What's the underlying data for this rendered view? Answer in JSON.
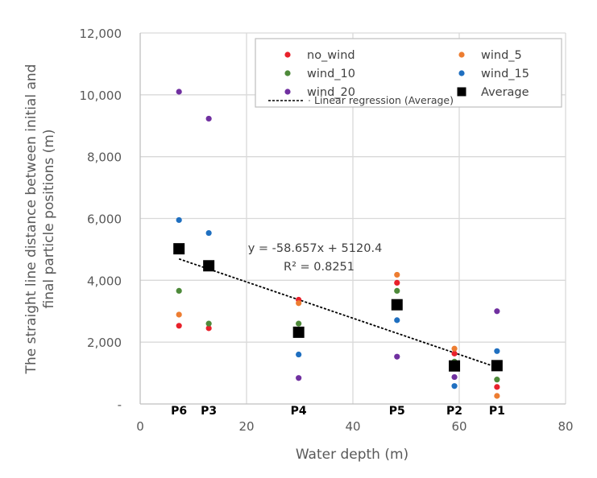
{
  "chart_data": {
    "type": "scatter",
    "title": "",
    "xlabel": "Water depth (m)",
    "ylabel_lines": [
      "The straight line distance between initial and",
      "final particle positions (m)"
    ],
    "xlim": [
      0,
      80
    ],
    "ylim": [
      0,
      12000
    ],
    "x_ticks": [
      0,
      20,
      40,
      60,
      80
    ],
    "x_tick_labels": [
      "0",
      "20",
      "40",
      "60",
      "80"
    ],
    "y_ticks": [
      0,
      2000,
      4000,
      6000,
      8000,
      10000,
      12000
    ],
    "y_tick_labels": [
      "-",
      "2,000",
      "4,000",
      "6,000",
      "8,000",
      "10,000",
      "12,000"
    ],
    "grid": true,
    "legend_position": "top-right",
    "point_labels": [
      {
        "label": "P6",
        "x": 7.3
      },
      {
        "label": "P3",
        "x": 12.9
      },
      {
        "label": "P4",
        "x": 29.8
      },
      {
        "label": "P5",
        "x": 48.3
      },
      {
        "label": "P2",
        "x": 59.1
      },
      {
        "label": "P1",
        "x": 67.1
      }
    ],
    "x": [
      7.3,
      12.9,
      29.8,
      48.3,
      59.1,
      67.1
    ],
    "series": [
      {
        "name": "no_wind",
        "color": "#E8212B",
        "marker": "circle",
        "values": [
          2530,
          2450,
          3370,
          3920,
          1630,
          550
        ]
      },
      {
        "name": "wind_5",
        "color": "#ED7D31",
        "marker": "circle",
        "values": [
          2890,
          null,
          3260,
          4180,
          1790,
          260
        ]
      },
      {
        "name": "wind_10",
        "color": "#4E8A3A",
        "marker": "circle",
        "values": [
          3660,
          2600,
          2600,
          3660,
          1370,
          790
        ]
      },
      {
        "name": "wind_15",
        "color": "#1F6FC0",
        "marker": "circle",
        "values": [
          5950,
          5530,
          1600,
          2710,
          580,
          1710
        ]
      },
      {
        "name": "wind_20",
        "color": "#7030A0",
        "marker": "circle",
        "values": [
          10100,
          9230,
          840,
          1530,
          870,
          3000
        ]
      },
      {
        "name": "Average",
        "color": "#000000",
        "marker": "square",
        "values": [
          5020,
          4470,
          2320,
          3210,
          1230,
          1240
        ]
      }
    ],
    "regression": {
      "name": "Linear regression  (Average)",
      "slope": -58.657,
      "intercept": 5120.4,
      "x_range": [
        7.3,
        67.1
      ],
      "equation_label": "y = -58.657x + 5120.4",
      "r2_label": "R² = 0.8251",
      "style": "dotted"
    }
  }
}
